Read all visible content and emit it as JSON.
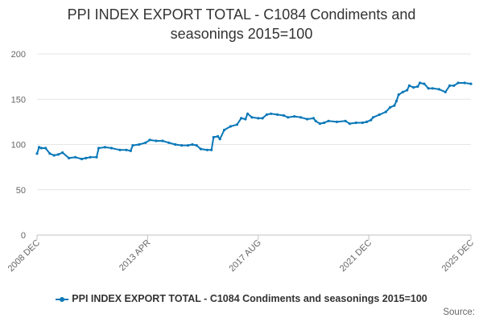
{
  "chart_data": {
    "type": "line",
    "title": "PPI INDEX EXPORT TOTAL - C1084 Condiments and\nseasonings 2015=100",
    "xlabel": "",
    "ylabel": "",
    "ylim": [
      0,
      200
    ],
    "yticks": [
      0,
      50,
      100,
      150,
      200
    ],
    "x_range": [
      "2008-12",
      "2025-12"
    ],
    "x_ticks": [
      {
        "date": "2008-12",
        "label": "2008 DEC"
      },
      {
        "date": "2013-04",
        "label": "2013 APR"
      },
      {
        "date": "2017-08",
        "label": "2017 AUG"
      },
      {
        "date": "2021-12",
        "label": "2021 DEC"
      },
      {
        "date": "2025-12",
        "label": "2025 DEC"
      }
    ],
    "grid": "horizontal",
    "legend_position": "bottom",
    "series": [
      {
        "name": "PPI INDEX EXPORT TOTAL - C1084 Condiments and seasonings 2015=100",
        "color": "#0a78b8",
        "points": [
          [
            "2008-12",
            90
          ],
          [
            "2009-01",
            97
          ],
          [
            "2009-02",
            96
          ],
          [
            "2009-04",
            96
          ],
          [
            "2009-06",
            90
          ],
          [
            "2009-08",
            88
          ],
          [
            "2009-10",
            89
          ],
          [
            "2009-12",
            91
          ],
          [
            "2010-03",
            85
          ],
          [
            "2010-06",
            86
          ],
          [
            "2010-09",
            84
          ],
          [
            "2010-11",
            85
          ],
          [
            "2011-01",
            86
          ],
          [
            "2011-04",
            86
          ],
          [
            "2011-05",
            96
          ],
          [
            "2011-08",
            97
          ],
          [
            "2011-11",
            96
          ],
          [
            "2012-03",
            94
          ],
          [
            "2012-06",
            94
          ],
          [
            "2012-08",
            93
          ],
          [
            "2012-09",
            99
          ],
          [
            "2012-12",
            100
          ],
          [
            "2013-03",
            102
          ],
          [
            "2013-05",
            105
          ],
          [
            "2013-08",
            104
          ],
          [
            "2013-11",
            104
          ],
          [
            "2014-02",
            102
          ],
          [
            "2014-05",
            100
          ],
          [
            "2014-08",
            99
          ],
          [
            "2014-11",
            99
          ],
          [
            "2015-01",
            100
          ],
          [
            "2015-03",
            99
          ],
          [
            "2015-05",
            95
          ],
          [
            "2015-08",
            94
          ],
          [
            "2015-10",
            94
          ],
          [
            "2015-11",
            108
          ],
          [
            "2016-01",
            109
          ],
          [
            "2016-02",
            106
          ],
          [
            "2016-04",
            116
          ],
          [
            "2016-07",
            120
          ],
          [
            "2016-10",
            122
          ],
          [
            "2016-12",
            129
          ],
          [
            "2017-02",
            128
          ],
          [
            "2017-03",
            134
          ],
          [
            "2017-05",
            130
          ],
          [
            "2017-08",
            129
          ],
          [
            "2017-10",
            129
          ],
          [
            "2017-12",
            133
          ],
          [
            "2018-02",
            134
          ],
          [
            "2018-05",
            133
          ],
          [
            "2018-08",
            132
          ],
          [
            "2018-10",
            130
          ],
          [
            "2019-01",
            131
          ],
          [
            "2019-04",
            130
          ],
          [
            "2019-07",
            128
          ],
          [
            "2019-10",
            129
          ],
          [
            "2019-11",
            126
          ],
          [
            "2020-01",
            123
          ],
          [
            "2020-03",
            124
          ],
          [
            "2020-05",
            126
          ],
          [
            "2020-09",
            125
          ],
          [
            "2021-01",
            126
          ],
          [
            "2021-03",
            123
          ],
          [
            "2021-06",
            124
          ],
          [
            "2021-09",
            124
          ],
          [
            "2021-11",
            125
          ],
          [
            "2022-01",
            127
          ],
          [
            "2022-02",
            130
          ],
          [
            "2022-05",
            133
          ],
          [
            "2022-08",
            136
          ],
          [
            "2022-10",
            141
          ],
          [
            "2022-12",
            143
          ],
          [
            "2023-01",
            148
          ],
          [
            "2023-02",
            155
          ],
          [
            "2023-04",
            158
          ],
          [
            "2023-06",
            160
          ],
          [
            "2023-07",
            165
          ],
          [
            "2023-09",
            163
          ],
          [
            "2023-11",
            164
          ],
          [
            "2023-12",
            168
          ],
          [
            "2024-02",
            167
          ],
          [
            "2024-04",
            162
          ],
          [
            "2024-06",
            162
          ],
          [
            "2024-09",
            161
          ],
          [
            "2024-12",
            158
          ],
          [
            "2025-02",
            165
          ],
          [
            "2025-04",
            165
          ],
          [
            "2025-06",
            168
          ],
          [
            "2025-09",
            168
          ],
          [
            "2025-12",
            167
          ]
        ]
      }
    ],
    "source_label": "Source:"
  }
}
